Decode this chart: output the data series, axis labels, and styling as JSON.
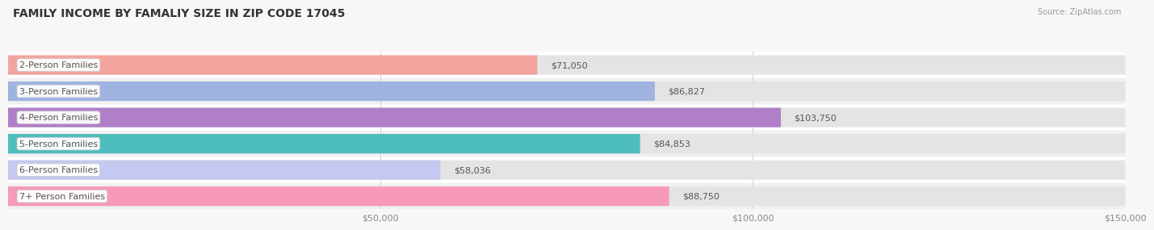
{
  "title": "FAMILY INCOME BY FAMALIY SIZE IN ZIP CODE 17045",
  "source": "Source: ZipAtlas.com",
  "categories": [
    "2-Person Families",
    "3-Person Families",
    "4-Person Families",
    "5-Person Families",
    "6-Person Families",
    "7+ Person Families"
  ],
  "values": [
    71050,
    86827,
    103750,
    84853,
    58036,
    88750
  ],
  "bar_colors": [
    "#f4a49e",
    "#9eb3e0",
    "#b07fc7",
    "#4dbdbe",
    "#c5c8f0",
    "#f799bb"
  ],
  "value_labels": [
    "$71,050",
    "$86,827",
    "$103,750",
    "$84,853",
    "$58,036",
    "$88,750"
  ],
  "xlim": [
    0,
    150000
  ],
  "xticks": [
    50000,
    100000,
    150000
  ],
  "xtick_labels": [
    "$50,000",
    "$100,000",
    "$150,000"
  ],
  "title_fontsize": 10,
  "label_fontsize": 8,
  "value_fontsize": 8,
  "bar_height": 0.68,
  "background_color": "#f7f7f7",
  "row_bg_light": "#ffffff",
  "row_bg_dark": "#f0f0f0",
  "bar_bg_color": "#e4e4e4",
  "label_bg_color": "#ffffff",
  "label_text_color": "#555555",
  "value_text_color": "#555555",
  "title_color": "#333333",
  "source_color": "#999999",
  "grid_color": "#d0d0d0"
}
